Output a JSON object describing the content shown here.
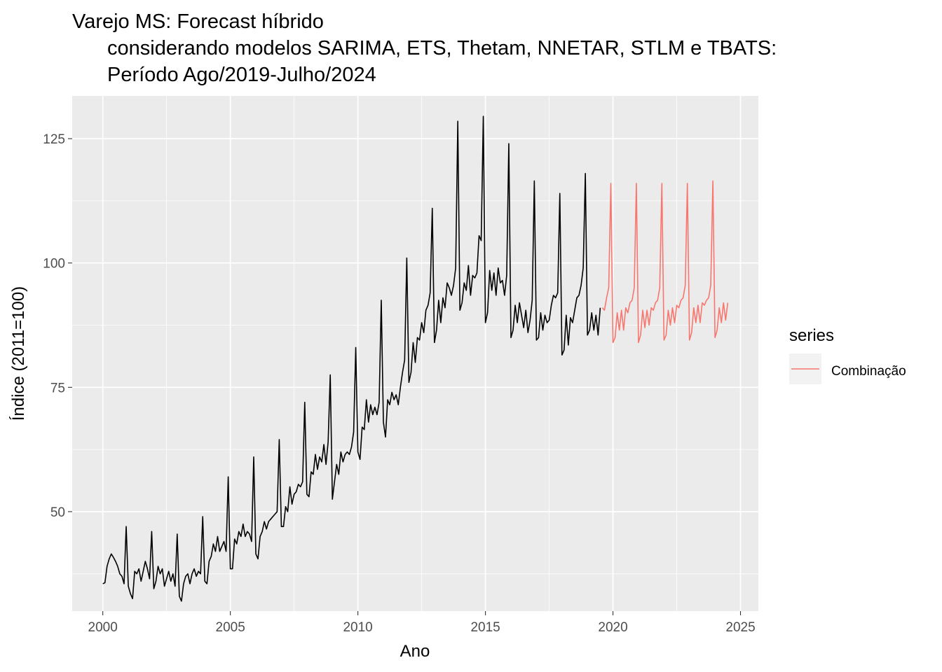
{
  "chart_data": {
    "type": "line",
    "title": "Varejo MS: Forecast híbrido",
    "subtitle_lines": [
      "considerando modelos SARIMA, ETS, Thetam, NNETAR, STLM e TBATS:",
      "Período Ago/2019-Julho/2024"
    ],
    "xlabel": "Ano",
    "ylabel": "Índice (2011=100)",
    "xlim": [
      1998.8,
      2025.7
    ],
    "ylim": [
      30.0,
      133.6
    ],
    "x_ticks": [
      2000,
      2005,
      2010,
      2015,
      2020,
      2025
    ],
    "x_tick_labels": [
      "2000",
      "2005",
      "2010",
      "2015",
      "2020",
      "2025"
    ],
    "y_ticks": [
      50,
      75,
      100,
      125
    ],
    "y_tick_labels": [
      "50",
      "75",
      "100",
      "125"
    ],
    "grid": true,
    "panel_background": "#ebebeb",
    "legend": {
      "title": "series",
      "position": "right",
      "entries": [
        {
          "label": "Combinação",
          "color": "#f8766d"
        }
      ]
    },
    "history": {
      "color": "#000000",
      "start": "2000-01",
      "frequency": "monthly",
      "values": [
        35.5,
        35.7,
        39.0,
        40.5,
        41.5,
        40.8,
        40.0,
        39.0,
        37.5,
        37.0,
        35.5,
        47.0,
        35.0,
        33.5,
        32.5,
        38.0,
        37.5,
        38.5,
        36.0,
        38.0,
        40.0,
        38.5,
        36.5,
        46.0,
        34.5,
        36.0,
        39.0,
        37.5,
        38.5,
        35.0,
        36.5,
        38.0,
        36.0,
        37.5,
        35.0,
        45.5,
        33.0,
        32.0,
        35.5,
        37.0,
        37.5,
        35.5,
        37.5,
        38.5,
        37.0,
        38.0,
        37.5,
        49.0,
        36.0,
        35.5,
        40.0,
        41.0,
        43.5,
        42.0,
        45.0,
        42.0,
        43.0,
        44.0,
        42.0,
        57.0,
        38.5,
        38.5,
        44.5,
        43.5,
        46.0,
        45.0,
        47.5,
        45.0,
        46.0,
        45.5,
        44.0,
        61.0,
        41.5,
        40.5,
        45.0,
        46.0,
        48.0,
        46.5,
        48.0,
        48.5,
        49.0,
        49.5,
        50.0,
        64.5,
        47.0,
        47.0,
        51.0,
        50.0,
        55.0,
        51.5,
        53.5,
        54.0,
        55.5,
        55.0,
        56.0,
        72.0,
        53.5,
        53.0,
        58.0,
        57.5,
        61.5,
        58.5,
        61.0,
        60.0,
        63.5,
        59.5,
        64.0,
        77.5,
        52.5,
        56.0,
        59.5,
        57.5,
        62.0,
        60.0,
        61.5,
        62.0,
        61.5,
        63.0,
        66.0,
        83.0,
        62.0,
        60.5,
        67.0,
        66.5,
        72.5,
        68.0,
        71.5,
        69.5,
        71.0,
        69.5,
        72.0,
        92.5,
        68.0,
        65.0,
        72.5,
        71.5,
        74.0,
        72.5,
        73.5,
        71.5,
        75.0,
        78.0,
        80.5,
        101.0,
        76.0,
        78.0,
        84.0,
        80.0,
        85.0,
        84.5,
        88.0,
        86.0,
        90.5,
        91.5,
        94.0,
        111.0,
        84.0,
        86.5,
        92.5,
        88.0,
        93.0,
        91.0,
        96.0,
        95.0,
        93.5,
        95.5,
        99.0,
        128.5,
        90.5,
        92.0,
        96.0,
        94.5,
        99.5,
        93.5,
        97.5,
        97.0,
        98.0,
        105.5,
        104.5,
        129.5,
        88.0,
        90.0,
        98.5,
        94.5,
        98.0,
        93.5,
        99.0,
        96.0,
        96.5,
        93.5,
        97.5,
        124.0,
        85.0,
        86.5,
        91.5,
        88.0,
        92.0,
        89.5,
        87.0,
        90.5,
        86.0,
        88.5,
        92.5,
        116.5,
        84.5,
        85.0,
        90.0,
        86.5,
        89.5,
        88.0,
        88.5,
        91.5,
        93.5,
        93.0,
        94.0,
        114.0,
        81.5,
        82.5,
        89.5,
        83.5,
        89.0,
        88.0,
        90.5,
        93.0,
        93.5,
        95.5,
        99.0,
        118.0,
        85.5,
        86.5,
        90.0,
        86.5,
        89.5,
        85.5,
        91.0
      ]
    },
    "series": [
      {
        "name": "Combinação",
        "color": "#f8766d",
        "start": "2019-08",
        "frequency": "monthly",
        "values": [
          91.0,
          90.5,
          93.0,
          95.0,
          116.0,
          84.0,
          85.0,
          90.0,
          86.5,
          90.5,
          86.5,
          91.0,
          90.0,
          92.0,
          92.5,
          95.0,
          116.0,
          84.0,
          85.5,
          90.5,
          87.0,
          90.5,
          87.5,
          91.0,
          90.5,
          92.0,
          92.5,
          95.0,
          116.0,
          84.5,
          85.5,
          90.5,
          87.5,
          91.0,
          88.0,
          91.5,
          91.0,
          92.5,
          93.0,
          95.5,
          116.0,
          84.5,
          86.0,
          91.0,
          88.0,
          91.5,
          88.0,
          92.0,
          91.5,
          92.5,
          93.0,
          95.5,
          116.5,
          85.0,
          86.5,
          91.0,
          88.0,
          92.0,
          88.5,
          92.0
        ]
      }
    ]
  }
}
